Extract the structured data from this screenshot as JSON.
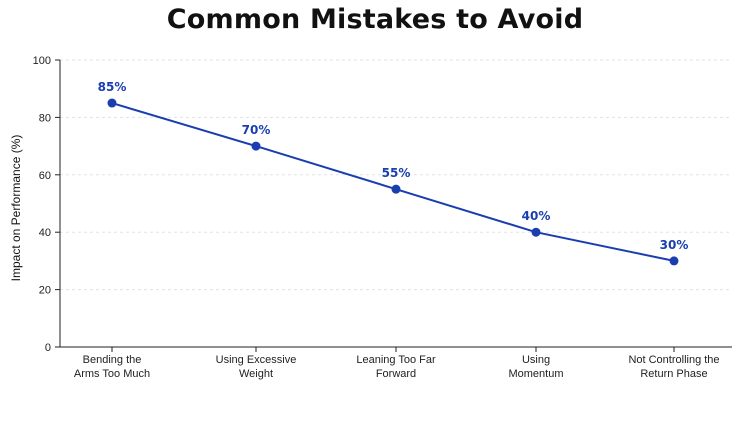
{
  "chart_data": {
    "type": "line",
    "title": "Common Mistakes to Avoid",
    "xlabel": "",
    "ylabel": "Impact on Performance (%)",
    "ylim": [
      0,
      100
    ],
    "yticks": [
      0,
      20,
      40,
      60,
      80,
      100
    ],
    "grid": true,
    "categories": [
      "Bending the\nArms Too Much",
      "Using Excessive\nWeight",
      "Leaning Too Far\nForward",
      "Using\nMomentum",
      "Not Controlling the\nReturn Phase"
    ],
    "values": [
      85,
      70,
      55,
      40,
      30
    ],
    "data_labels": [
      "85%",
      "70%",
      "55%",
      "40%",
      "30%"
    ],
    "colors": {
      "line": "#1a3eb0",
      "label": "#1a3eb0",
      "grid": "#e3e3e3",
      "axis": "#222222"
    }
  }
}
